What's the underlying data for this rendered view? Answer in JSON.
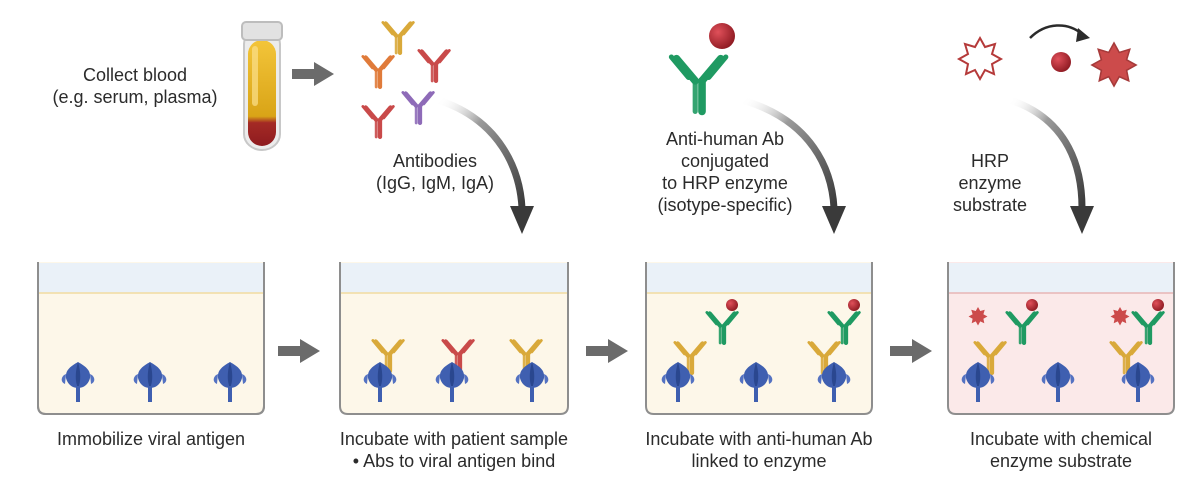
{
  "top_labels": {
    "collect_blood": "Collect blood\n(e.g. serum, plasma)",
    "antibodies": "Antibodies\n(IgG, IgM, IgA)",
    "anti_human_ab": "Anti-human Ab\nconjugated\nto HRP enzyme\n(isotype-specific)",
    "hrp_substrate": "HRP\nenzyme\nsubstrate"
  },
  "steps": [
    {
      "caption": "Immobilize viral antigen"
    },
    {
      "caption": "Incubate with patient sample\n• Abs to viral antigen bind"
    },
    {
      "caption": "Incubate with anti-human Ab\nlinked to enzyme"
    },
    {
      "caption": "Incubate with chemical\nenzyme substrate"
    }
  ],
  "colors": {
    "antigen": "#3f5fb0",
    "igg_gold": "#d9a93a",
    "igm_red": "#c94a4a",
    "iga_orange": "#e07b3a",
    "purple_ab": "#8e6bb8",
    "secondary_ab_green": "#1f9a62",
    "hrp_red": "#b32831",
    "substrate_product": "#cc4b4b",
    "arrow_gray": "#6b6b6b",
    "blood": "#d4a317",
    "blood_cells": "#9e1f22"
  },
  "icons": [
    "blood-tube-icon",
    "antibody-icon",
    "antigen-icon",
    "hrp-enzyme-icon",
    "substrate-star-icon",
    "arrow-icon"
  ]
}
